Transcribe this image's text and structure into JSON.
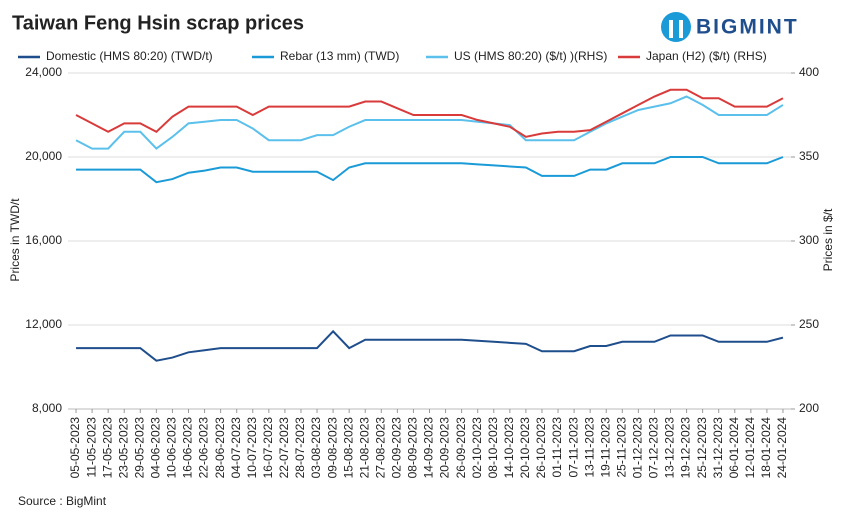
{
  "chart_data": {
    "type": "line",
    "title": "Taiwan Feng Hsin scrap prices",
    "logo": "BIGMINT",
    "source": "Source : BigMint",
    "ylabel": "Prices in TWD/t",
    "y2label": "Prices in $/t",
    "categories": [
      "05-05-2023",
      "11-05-2023",
      "17-05-2023",
      "23-05-2023",
      "29-05-2023",
      "04-06-2023",
      "10-06-2023",
      "16-06-2023",
      "22-06-2023",
      "28-06-2023",
      "04-07-2023",
      "10-07-2023",
      "16-07-2023",
      "22-07-2023",
      "28-07-2023",
      "03-08-2023",
      "09-08-2023",
      "15-08-2023",
      "21-08-2023",
      "27-08-2023",
      "02-09-2023",
      "08-09-2023",
      "14-09-2023",
      "20-09-2023",
      "26-09-2023",
      "02-10-2023",
      "08-10-2023",
      "14-10-2023",
      "20-10-2023",
      "26-10-2023",
      "01-11-2023",
      "07-11-2023",
      "13-11-2023",
      "19-11-2023",
      "25-11-2023",
      "01-12-2023",
      "07-12-2023",
      "13-12-2023",
      "19-12-2023",
      "25-12-2023",
      "31-12-2023",
      "06-01-2024",
      "12-01-2024",
      "18-01-2024",
      "24-01-2024"
    ],
    "series": [
      {
        "name": "Domestic (HMS 80:20) (TWD/t)",
        "color": "#1f4e8c",
        "axis": "y",
        "values": [
          10900,
          10900,
          10900,
          10900,
          10900,
          10300,
          10450,
          10700,
          10800,
          10900,
          10900,
          10900,
          10900,
          10900,
          10900,
          10900,
          11700,
          10900,
          11300,
          11300,
          11300,
          11300,
          11300,
          11300,
          11300,
          11250,
          11200,
          11150,
          11100,
          10750,
          10750,
          10750,
          11000,
          11000,
          11200,
          11200,
          11200,
          11500,
          11500,
          11500,
          11200,
          11200,
          11200,
          11200,
          11400
        ]
      },
      {
        "name": "Rebar (13 mm) (TWD)",
        "color": "#1a9bd7",
        "axis": "y",
        "values": [
          19400,
          19400,
          19400,
          19400,
          19400,
          18800,
          18950,
          19250,
          19350,
          19500,
          19500,
          19300,
          19300,
          19300,
          19300,
          19300,
          18900,
          19500,
          19700,
          19700,
          19700,
          19700,
          19700,
          19700,
          19700,
          19650,
          19600,
          19550,
          19500,
          19100,
          19100,
          19100,
          19400,
          19400,
          19700,
          19700,
          19700,
          20000,
          20000,
          20000,
          19700,
          19700,
          19700,
          19700,
          20000
        ]
      },
      {
        "name": "US (HMS 80:20) ($/t) )(RHS)",
        "color": "#5bc0eb",
        "axis": "y2",
        "values": [
          360,
          355,
          355,
          365,
          365,
          355,
          362,
          370,
          371,
          372,
          372,
          367,
          360,
          360,
          360,
          363,
          363,
          368,
          372,
          372,
          372,
          372,
          372,
          372,
          372,
          371,
          370,
          369,
          360,
          360,
          360,
          360,
          365,
          370,
          374,
          378,
          380,
          382,
          386,
          381,
          375,
          375,
          375,
          375,
          381
        ]
      },
      {
        "name": "Japan (H2) ($/t) (RHS)",
        "color": "#d93a3a",
        "axis": "y2",
        "values": [
          375,
          370,
          365,
          370,
          370,
          365,
          374,
          380,
          380,
          380,
          380,
          375,
          380,
          380,
          380,
          380,
          380,
          380,
          383,
          383,
          379,
          375,
          375,
          375,
          375,
          372,
          370,
          368,
          362,
          364,
          365,
          365,
          366,
          371,
          376,
          381,
          386,
          390,
          390,
          385,
          385,
          380,
          380,
          380,
          385
        ]
      }
    ],
    "ylim": [
      8000,
      24000
    ],
    "yticks": [
      {
        "value": 8000,
        "label": "8,000"
      },
      {
        "value": 12000,
        "label": "12,000"
      },
      {
        "value": 16000,
        "label": "16,000"
      },
      {
        "value": 20000,
        "label": "20,000"
      },
      {
        "value": 24000,
        "label": "24,000"
      }
    ],
    "y2lim": [
      200,
      400
    ],
    "y2ticks": [
      200,
      250,
      300,
      350,
      400
    ],
    "grid": true
  }
}
